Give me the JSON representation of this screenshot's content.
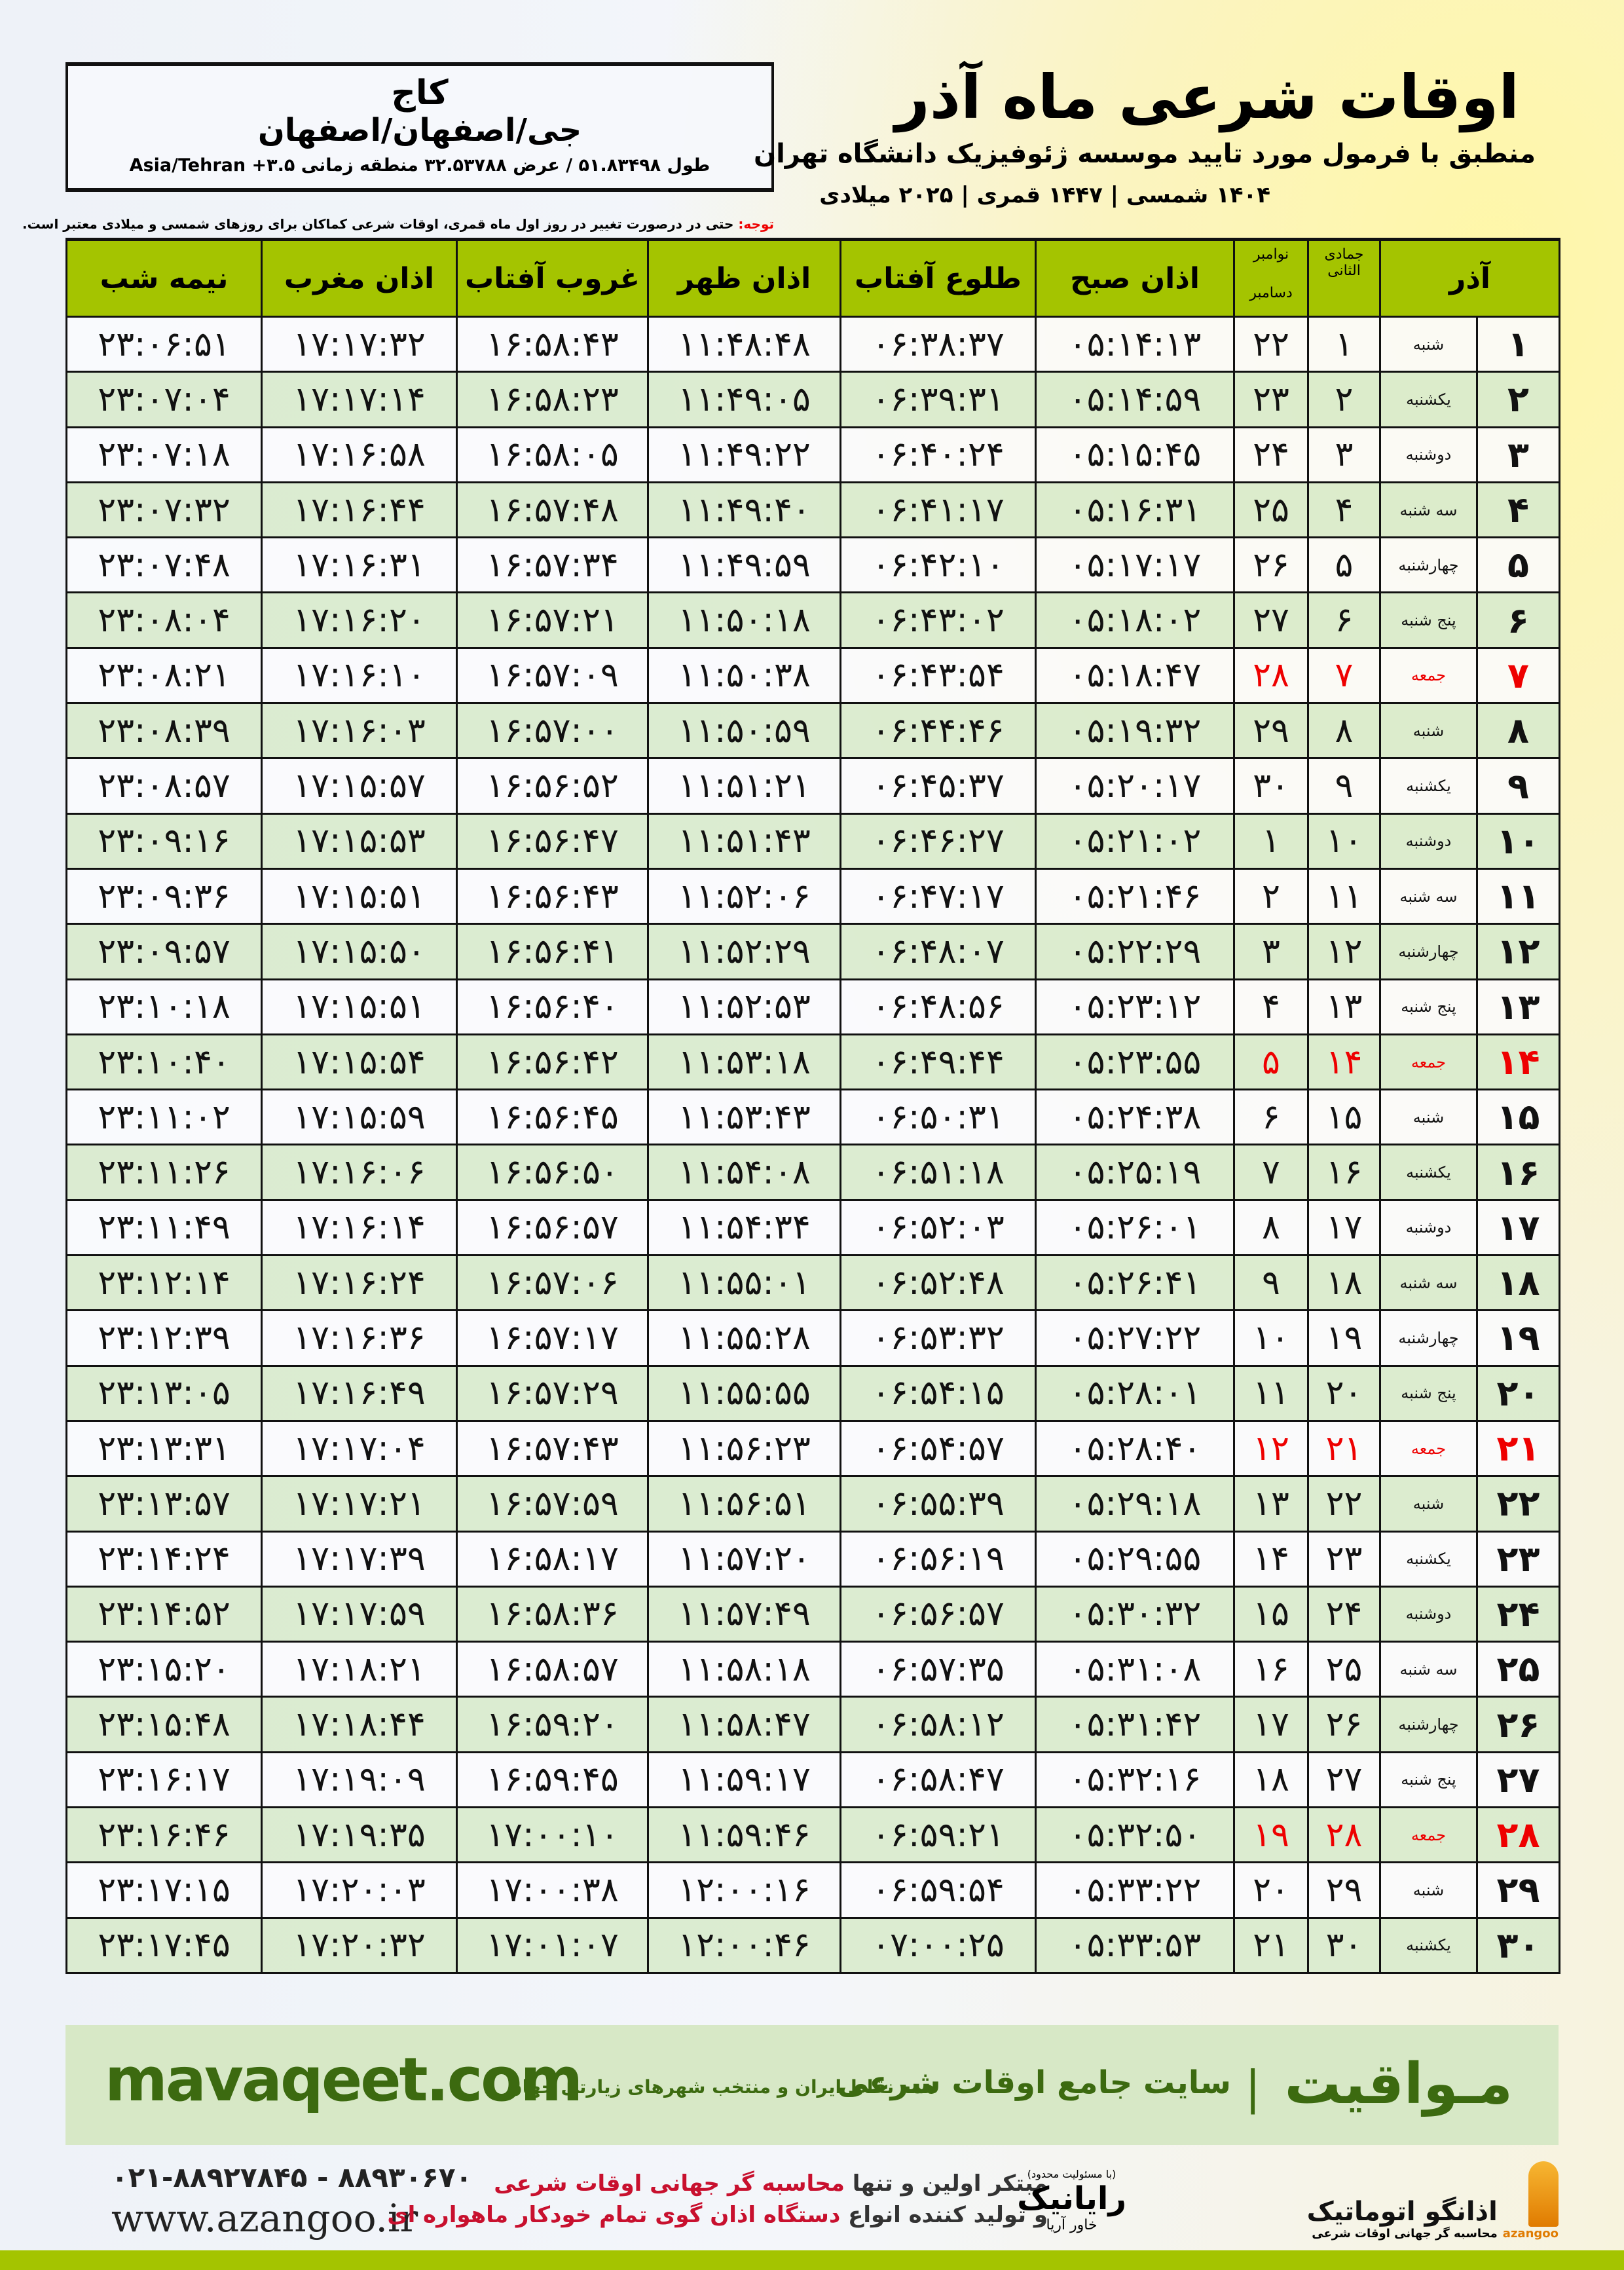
{
  "header": {
    "title": "اوقات شرعی ماه آذر",
    "subtitle": "منطبق با فرمول مورد تایید موسسه ژئوفیزیک دانشگاه تهران",
    "years": "۱۴۰۴ شمسی | ۱۴۴۷ قمری | ۲۰۲۵ میلادی"
  },
  "location": {
    "city": "کاج",
    "region": "جی/اصفهان/اصفهان",
    "coords": "طول ۵۱.۸۳۴۹۸ / عرض ۳۲.۵۳۷۸۸ منطقه زمانی ۳.۵+ Asia/Tehran"
  },
  "note": {
    "label": "توجه:",
    "text": " حتی در درصورت تغییر در روز اول ماه قمری، اوقات شرعی کماکان برای روزهای شمسی و میلادی معتبر است."
  },
  "table": {
    "headers": {
      "azar": "آذر",
      "hijri": "جمادی الثانی",
      "gregorian_top": "نوامبر",
      "gregorian_bottom": "دسامبر",
      "fajr": "اذان صبح",
      "sunrise": "طلوع آفتاب",
      "dhuhr": "اذان ظهر",
      "sunset": "غروب آفتاب",
      "maghrib": "اذان مغرب",
      "midnight": "نیمه شب"
    },
    "friday_color": "#ee0000",
    "rows": [
      [
        "۱",
        "شنبه",
        "۱",
        "۲۲",
        "۰۵:۱۴:۱۳",
        "۰۶:۳۸:۳۷",
        "۱۱:۴۸:۴۸",
        "۱۶:۵۸:۴۳",
        "۱۷:۱۷:۳۲",
        "۲۳:۰۶:۵۱"
      ],
      [
        "۲",
        "یکشنبه",
        "۲",
        "۲۳",
        "۰۵:۱۴:۵۹",
        "۰۶:۳۹:۳۱",
        "۱۱:۴۹:۰۵",
        "۱۶:۵۸:۲۳",
        "۱۷:۱۷:۱۴",
        "۲۳:۰۷:۰۴"
      ],
      [
        "۳",
        "دوشنبه",
        "۳",
        "۲۴",
        "۰۵:۱۵:۴۵",
        "۰۶:۴۰:۲۴",
        "۱۱:۴۹:۲۲",
        "۱۶:۵۸:۰۵",
        "۱۷:۱۶:۵۸",
        "۲۳:۰۷:۱۸"
      ],
      [
        "۴",
        "سه شنبه",
        "۴",
        "۲۵",
        "۰۵:۱۶:۳۱",
        "۰۶:۴۱:۱۷",
        "۱۱:۴۹:۴۰",
        "۱۶:۵۷:۴۸",
        "۱۷:۱۶:۴۴",
        "۲۳:۰۷:۳۲"
      ],
      [
        "۵",
        "چهارشنبه",
        "۵",
        "۲۶",
        "۰۵:۱۷:۱۷",
        "۰۶:۴۲:۱۰",
        "۱۱:۴۹:۵۹",
        "۱۶:۵۷:۳۴",
        "۱۷:۱۶:۳۱",
        "۲۳:۰۷:۴۸"
      ],
      [
        "۶",
        "پنج شنبه",
        "۶",
        "۲۷",
        "۰۵:۱۸:۰۲",
        "۰۶:۴۳:۰۲",
        "۱۱:۵۰:۱۸",
        "۱۶:۵۷:۲۱",
        "۱۷:۱۶:۲۰",
        "۲۳:۰۸:۰۴"
      ],
      [
        "۷",
        "جمعه",
        "۷",
        "۲۸",
        "۰۵:۱۸:۴۷",
        "۰۶:۴۳:۵۴",
        "۱۱:۵۰:۳۸",
        "۱۶:۵۷:۰۹",
        "۱۷:۱۶:۱۰",
        "۲۳:۰۸:۲۱"
      ],
      [
        "۸",
        "شنبه",
        "۸",
        "۲۹",
        "۰۵:۱۹:۳۲",
        "۰۶:۴۴:۴۶",
        "۱۱:۵۰:۵۹",
        "۱۶:۵۷:۰۰",
        "۱۷:۱۶:۰۳",
        "۲۳:۰۸:۳۹"
      ],
      [
        "۹",
        "یکشنبه",
        "۹",
        "۳۰",
        "۰۵:۲۰:۱۷",
        "۰۶:۴۵:۳۷",
        "۱۱:۵۱:۲۱",
        "۱۶:۵۶:۵۲",
        "۱۷:۱۵:۵۷",
        "۲۳:۰۸:۵۷"
      ],
      [
        "۱۰",
        "دوشنبه",
        "۱۰",
        "۱",
        "۰۵:۲۱:۰۲",
        "۰۶:۴۶:۲۷",
        "۱۱:۵۱:۴۳",
        "۱۶:۵۶:۴۷",
        "۱۷:۱۵:۵۳",
        "۲۳:۰۹:۱۶"
      ],
      [
        "۱۱",
        "سه شنبه",
        "۱۱",
        "۲",
        "۰۵:۲۱:۴۶",
        "۰۶:۴۷:۱۷",
        "۱۱:۵۲:۰۶",
        "۱۶:۵۶:۴۳",
        "۱۷:۱۵:۵۱",
        "۲۳:۰۹:۳۶"
      ],
      [
        "۱۲",
        "چهارشنبه",
        "۱۲",
        "۳",
        "۰۵:۲۲:۲۹",
        "۰۶:۴۸:۰۷",
        "۱۱:۵۲:۲۹",
        "۱۶:۵۶:۴۱",
        "۱۷:۱۵:۵۰",
        "۲۳:۰۹:۵۷"
      ],
      [
        "۱۳",
        "پنج شنبه",
        "۱۳",
        "۴",
        "۰۵:۲۳:۱۲",
        "۰۶:۴۸:۵۶",
        "۱۱:۵۲:۵۳",
        "۱۶:۵۶:۴۰",
        "۱۷:۱۵:۵۱",
        "۲۳:۱۰:۱۸"
      ],
      [
        "۱۴",
        "جمعه",
        "۱۴",
        "۵",
        "۰۵:۲۳:۵۵",
        "۰۶:۴۹:۴۴",
        "۱۱:۵۳:۱۸",
        "۱۶:۵۶:۴۲",
        "۱۷:۱۵:۵۴",
        "۲۳:۱۰:۴۰"
      ],
      [
        "۱۵",
        "شنبه",
        "۱۵",
        "۶",
        "۰۵:۲۴:۳۸",
        "۰۶:۵۰:۳۱",
        "۱۱:۵۳:۴۳",
        "۱۶:۵۶:۴۵",
        "۱۷:۱۵:۵۹",
        "۲۳:۱۱:۰۲"
      ],
      [
        "۱۶",
        "یکشنبه",
        "۱۶",
        "۷",
        "۰۵:۲۵:۱۹",
        "۰۶:۵۱:۱۸",
        "۱۱:۵۴:۰۸",
        "۱۶:۵۶:۵۰",
        "۱۷:۱۶:۰۶",
        "۲۳:۱۱:۲۶"
      ],
      [
        "۱۷",
        "دوشنبه",
        "۱۷",
        "۸",
        "۰۵:۲۶:۰۱",
        "۰۶:۵۲:۰۳",
        "۱۱:۵۴:۳۴",
        "۱۶:۵۶:۵۷",
        "۱۷:۱۶:۱۴",
        "۲۳:۱۱:۴۹"
      ],
      [
        "۱۸",
        "سه شنبه",
        "۱۸",
        "۹",
        "۰۵:۲۶:۴۱",
        "۰۶:۵۲:۴۸",
        "۱۱:۵۵:۰۱",
        "۱۶:۵۷:۰۶",
        "۱۷:۱۶:۲۴",
        "۲۳:۱۲:۱۴"
      ],
      [
        "۱۹",
        "چهارشنبه",
        "۱۹",
        "۱۰",
        "۰۵:۲۷:۲۲",
        "۰۶:۵۳:۳۲",
        "۱۱:۵۵:۲۸",
        "۱۶:۵۷:۱۷",
        "۱۷:۱۶:۳۶",
        "۲۳:۱۲:۳۹"
      ],
      [
        "۲۰",
        "پنج شنبه",
        "۲۰",
        "۱۱",
        "۰۵:۲۸:۰۱",
        "۰۶:۵۴:۱۵",
        "۱۱:۵۵:۵۵",
        "۱۶:۵۷:۲۹",
        "۱۷:۱۶:۴۹",
        "۲۳:۱۳:۰۵"
      ],
      [
        "۲۱",
        "جمعه",
        "۲۱",
        "۱۲",
        "۰۵:۲۸:۴۰",
        "۰۶:۵۴:۵۷",
        "۱۱:۵۶:۲۳",
        "۱۶:۵۷:۴۳",
        "۱۷:۱۷:۰۴",
        "۲۳:۱۳:۳۱"
      ],
      [
        "۲۲",
        "شنبه",
        "۲۲",
        "۱۳",
        "۰۵:۲۹:۱۸",
        "۰۶:۵۵:۳۹",
        "۱۱:۵۶:۵۱",
        "۱۶:۵۷:۵۹",
        "۱۷:۱۷:۲۱",
        "۲۳:۱۳:۵۷"
      ],
      [
        "۲۳",
        "یکشنبه",
        "۲۳",
        "۱۴",
        "۰۵:۲۹:۵۵",
        "۰۶:۵۶:۱۹",
        "۱۱:۵۷:۲۰",
        "۱۶:۵۸:۱۷",
        "۱۷:۱۷:۳۹",
        "۲۳:۱۴:۲۴"
      ],
      [
        "۲۴",
        "دوشنبه",
        "۲۴",
        "۱۵",
        "۰۵:۳۰:۳۲",
        "۰۶:۵۶:۵۷",
        "۱۱:۵۷:۴۹",
        "۱۶:۵۸:۳۶",
        "۱۷:۱۷:۵۹",
        "۲۳:۱۴:۵۲"
      ],
      [
        "۲۵",
        "سه شنبه",
        "۲۵",
        "۱۶",
        "۰۵:۳۱:۰۸",
        "۰۶:۵۷:۳۵",
        "۱۱:۵۸:۱۸",
        "۱۶:۵۸:۵۷",
        "۱۷:۱۸:۲۱",
        "۲۳:۱۵:۲۰"
      ],
      [
        "۲۶",
        "چهارشنبه",
        "۲۶",
        "۱۷",
        "۰۵:۳۱:۴۲",
        "۰۶:۵۸:۱۲",
        "۱۱:۵۸:۴۷",
        "۱۶:۵۹:۲۰",
        "۱۷:۱۸:۴۴",
        "۲۳:۱۵:۴۸"
      ],
      [
        "۲۷",
        "پنج شنبه",
        "۲۷",
        "۱۸",
        "۰۵:۳۲:۱۶",
        "۰۶:۵۸:۴۷",
        "۱۱:۵۹:۱۷",
        "۱۶:۵۹:۴۵",
        "۱۷:۱۹:۰۹",
        "۲۳:۱۶:۱۷"
      ],
      [
        "۲۸",
        "جمعه",
        "۲۸",
        "۱۹",
        "۰۵:۳۲:۵۰",
        "۰۶:۵۹:۲۱",
        "۱۱:۵۹:۴۶",
        "۱۷:۰۰:۱۰",
        "۱۷:۱۹:۳۵",
        "۲۳:۱۶:۴۶"
      ],
      [
        "۲۹",
        "شنبه",
        "۲۹",
        "۲۰",
        "۰۵:۳۳:۲۲",
        "۰۶:۵۹:۵۴",
        "۱۲:۰۰:۱۶",
        "۱۷:۰۰:۳۸",
        "۱۷:۲۰:۰۳",
        "۲۳:۱۷:۱۵"
      ],
      [
        "۳۰",
        "یکشنبه",
        "۳۰",
        "۲۱",
        "۰۵:۳۳:۵۳",
        "۰۷:۰۰:۲۵",
        "۱۲:۰۰:۴۶",
        "۱۷:۰۱:۰۷",
        "۱۷:۲۰:۳۲",
        "۲۳:۱۷:۴۵"
      ]
    ]
  },
  "footer": {
    "brand": "مـواقیت",
    "tagline": "سایت جامع اوقات شرعی",
    "sub": "همه نقاط ایران و منتخب شهرهای زیارتی جهان",
    "url": "mavaqeet.com",
    "promo1_a": "مبتکر اولین و تنها ",
    "promo1_b": "محاسبه گر جهانی اوقات شرعی",
    "promo2_a": "و تولید کننده انواع ",
    "promo2_b": "دستگاه اذان گوی تمام خودکار ماهواره ای",
    "phone": "۰۲۱-۸۸۹۲۷۸۴۵ - ۸۸۹۳۰۶۷۰",
    "website": "www.azangoo.ir",
    "logo_rayanik_top": "(با مسئولیت محدود)",
    "logo_rayanik": "رایانیک",
    "logo_rayanik_side": "خاور آریا",
    "logo_azangoo": "اذانگو اتوماتیک",
    "logo_azangoo_sub": "محاسبه گر جهانی اوقات شرعی",
    "logo_azangoo_en": "azangoo",
    "brand_color": "#3c6a10",
    "accent_green": "#a4c400",
    "promo_red": "#c8102e"
  }
}
